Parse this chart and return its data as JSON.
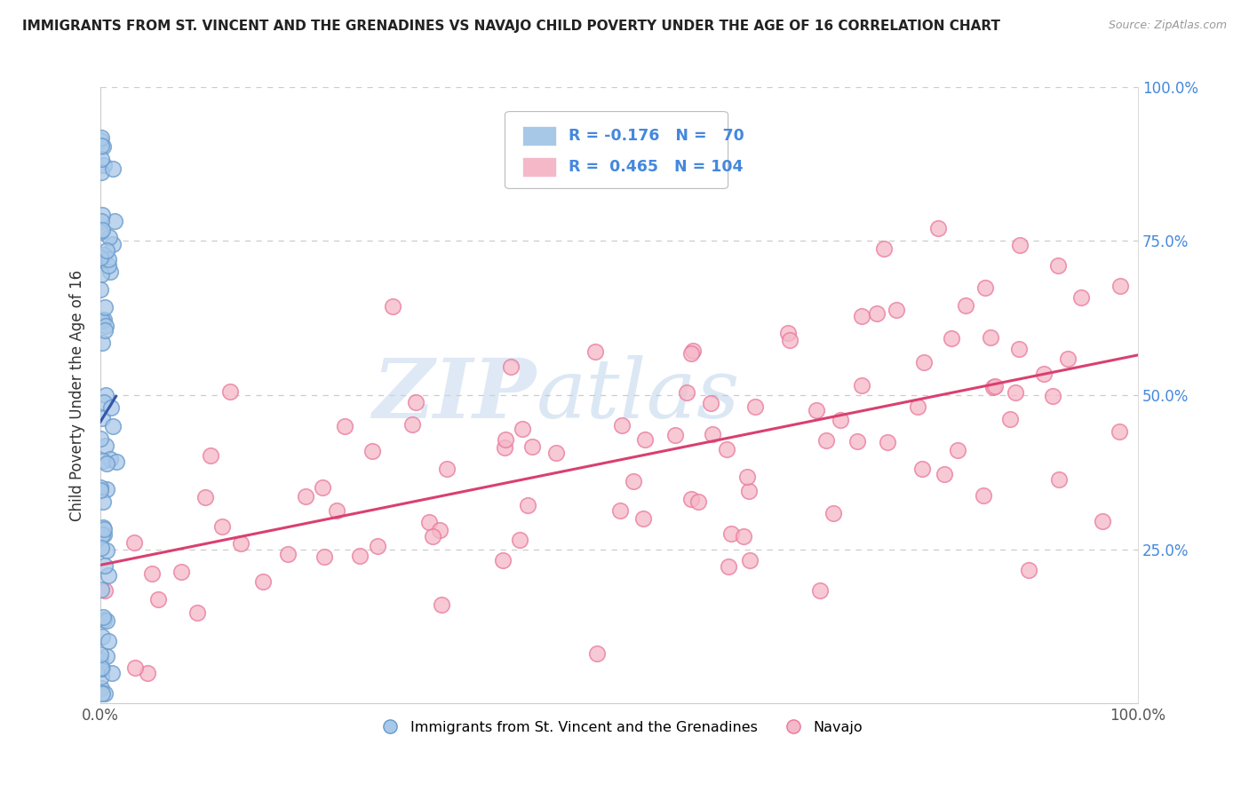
{
  "title": "IMMIGRANTS FROM ST. VINCENT AND THE GRENADINES VS NAVAJO CHILD POVERTY UNDER THE AGE OF 16 CORRELATION CHART",
  "source": "Source: ZipAtlas.com",
  "ylabel": "Child Poverty Under the Age of 16",
  "legend_labels": [
    "Immigrants from St. Vincent and the Grenadines",
    "Navajo"
  ],
  "blue_R": "-0.176",
  "blue_N": "70",
  "pink_R": "0.465",
  "pink_N": "104",
  "watermark_part1": "ZIP",
  "watermark_part2": "atlas",
  "background_color": "#ffffff",
  "blue_scatter_color": "#a8c8e8",
  "blue_edge_color": "#6699cc",
  "pink_scatter_color": "#f5b8c8",
  "pink_edge_color": "#e8789a",
  "blue_line_color": "#3355aa",
  "pink_line_color": "#d94070",
  "grid_color": "#cccccc",
  "ytick_color": "#4488dd",
  "xtick_color": "#555555",
  "title_color": "#222222",
  "source_color": "#999999"
}
